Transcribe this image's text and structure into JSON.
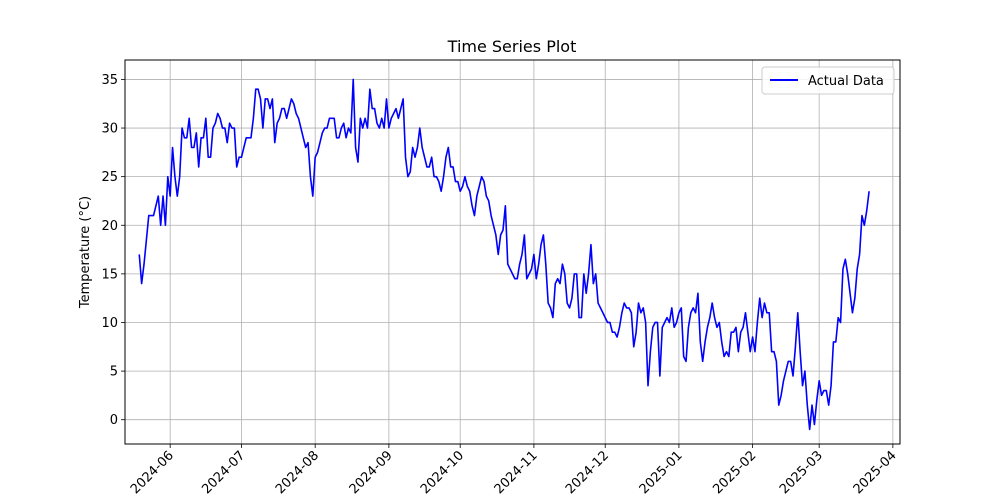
{
  "chart_data": {
    "type": "line",
    "title": "Time Series Plot",
    "xlabel": "",
    "ylabel": "Temperature (°C)",
    "ylim": [
      -2.5,
      37
    ],
    "xlim": [
      "2024-05-13",
      "2025-04-04"
    ],
    "grid": true,
    "legend": {
      "position": "top-right",
      "entries": [
        "Actual Data"
      ]
    },
    "x_ticks": [
      "2024-06",
      "2024-07",
      "2024-08",
      "2024-09",
      "2024-10",
      "2024-11",
      "2024-12",
      "2025-01",
      "2025-02",
      "2025-03",
      "2025-04"
    ],
    "y_ticks": [
      0,
      5,
      10,
      15,
      20,
      25,
      30,
      35
    ],
    "series": [
      {
        "name": "Actual Data",
        "color": "#0000ff",
        "start_date": "2024-05-19",
        "y": [
          17.0,
          14.0,
          16.0,
          18.5,
          21.0,
          21.0,
          21.0,
          22.0,
          23.0,
          20.0,
          23.0,
          20.0,
          25.0,
          23.0,
          28.0,
          25.0,
          23.0,
          25.0,
          30.0,
          29.0,
          29.0,
          31.0,
          28.0,
          28.0,
          29.5,
          26.0,
          29.0,
          29.0,
          31.0,
          27.0,
          27.0,
          30.0,
          30.5,
          31.5,
          31.0,
          30.0,
          30.0,
          28.5,
          30.5,
          30.0,
          30.0,
          26.0,
          27.0,
          27.0,
          28.0,
          29.0,
          29.0,
          29.0,
          31.0,
          34.0,
          34.0,
          33.0,
          30.0,
          33.0,
          33.0,
          32.0,
          33.0,
          28.5,
          30.5,
          31.0,
          32.0,
          32.0,
          31.0,
          32.0,
          33.0,
          32.5,
          31.5,
          31.0,
          30.0,
          29.0,
          28.0,
          28.5,
          25.0,
          23.0,
          27.0,
          27.5,
          28.5,
          29.5,
          30.0,
          30.0,
          31.0,
          31.0,
          31.0,
          29.0,
          29.0,
          30.0,
          30.5,
          29.0,
          30.0,
          29.5,
          35.0,
          28.0,
          26.5,
          31.0,
          30.0,
          31.0,
          30.0,
          34.0,
          32.0,
          32.0,
          30.5,
          30.0,
          31.0,
          30.0,
          33.0,
          30.0,
          31.0,
          31.5,
          32.0,
          31.0,
          32.0,
          33.0,
          27.0,
          25.0,
          25.5,
          28.0,
          27.0,
          28.0,
          30.0,
          28.0,
          27.0,
          26.0,
          26.0,
          27.0,
          25.0,
          25.0,
          24.5,
          23.5,
          25.0,
          27.0,
          28.0,
          26.0,
          26.0,
          24.5,
          24.5,
          23.5,
          24.0,
          25.0,
          24.0,
          23.5,
          22.0,
          21.0,
          23.0,
          24.0,
          25.0,
          24.5,
          23.0,
          22.5,
          21.0,
          20.0,
          19.0,
          17.0,
          19.0,
          19.5,
          22.0,
          16.0,
          15.5,
          15.0,
          14.5,
          14.5,
          16.0,
          17.0,
          19.0,
          14.5,
          15.0,
          15.5,
          17.0,
          14.5,
          16.0,
          18.0,
          19.0,
          16.0,
          12.0,
          11.5,
          10.5,
          14.0,
          14.5,
          14.0,
          16.0,
          15.0,
          12.0,
          11.5,
          12.5,
          15.0,
          15.0,
          10.5,
          10.5,
          15.0,
          13.0,
          15.0,
          18.0,
          14.0,
          15.0,
          12.0,
          11.5,
          11.0,
          10.5,
          10.0,
          10.0,
          9.0,
          9.0,
          8.5,
          9.5,
          11.0,
          12.0,
          11.5,
          11.5,
          11.0,
          7.5,
          9.0,
          12.0,
          11.0,
          11.5,
          10.0,
          3.5,
          7.0,
          9.5,
          10.0,
          10.0,
          4.5,
          9.5,
          10.0,
          10.5,
          10.0,
          11.5,
          9.5,
          10.0,
          11.0,
          11.5,
          6.5,
          6.0,
          9.5,
          11.0,
          11.5,
          11.0,
          13.0,
          8.0,
          6.0,
          8.0,
          9.5,
          10.5,
          12.0,
          10.5,
          9.5,
          10.0,
          8.0,
          6.5,
          7.0,
          6.5,
          9.0,
          9.0,
          9.5,
          7.0,
          9.0,
          9.5,
          11.0,
          9.0,
          7.0,
          8.5,
          7.0,
          10.0,
          12.5,
          10.5,
          12.0,
          11.0,
          11.0,
          7.0,
          7.0,
          6.0,
          1.5,
          2.5,
          4.0,
          5.0,
          6.0,
          6.0,
          4.5,
          7.5,
          11.0,
          7.0,
          3.5,
          5.0,
          1.5,
          -1.0,
          1.5,
          -0.5,
          2.0,
          4.0,
          2.5,
          3.0,
          3.0,
          1.5,
          3.5,
          8.0,
          8.0,
          10.5,
          10.0,
          15.5,
          16.5,
          15.0,
          13.0,
          11.0,
          12.5,
          15.5,
          17.0,
          21.0,
          20.0,
          21.5,
          23.5
        ]
      }
    ]
  }
}
